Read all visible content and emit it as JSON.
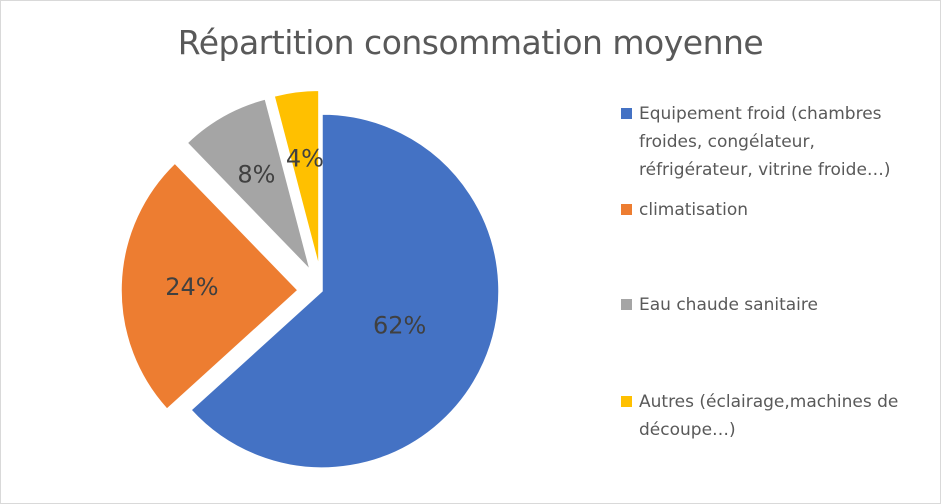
{
  "chart_data": {
    "type": "pie",
    "title": "Répartition consommation moyenne",
    "categories": [
      "Equipement froid (chambres froides, congélateur, réfrigérateur, vitrine froide…)",
      "climatisation",
      "Eau chaude sanitaire",
      "Autres (éclairage,machines de découpe…)"
    ],
    "values": [
      62,
      24,
      8,
      4
    ],
    "data_labels": [
      "62%",
      "24%",
      "8%",
      "4%"
    ],
    "colors": [
      "#4472C4",
      "#ED7D31",
      "#A5A5A5",
      "#FFC000"
    ],
    "exploded": true,
    "legend_position": "right"
  }
}
